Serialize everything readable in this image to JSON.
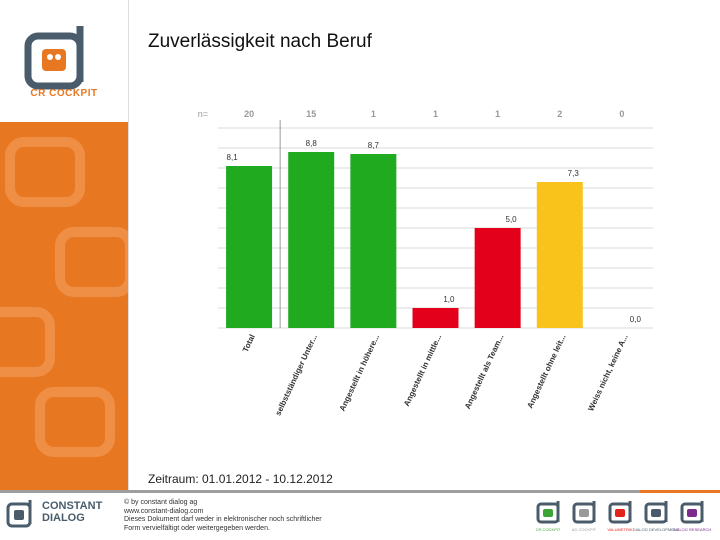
{
  "slide": {
    "title": "Zuverlässigkeit nach Beruf",
    "period": "Zeitraum: 01.01.2012 - 10.12.2012"
  },
  "brand": {
    "logo_text": "CR COCKPIT",
    "footer_brand_line1": "CONSTANT",
    "footer_brand_line2": "DIALOG",
    "copyright_lines": [
      "© by constant dialog ag",
      "www.constant-dialog.com",
      "Dieses Dokument darf weder in elektronischer noch schriftlicher",
      "Form vervielfältigt oder weitergegeben werden."
    ],
    "colors": {
      "orange": "#e87722",
      "slate": "#4a5c6b"
    }
  },
  "footer_icons": [
    {
      "color": "#3aa535",
      "label": "CR COCKPIT"
    },
    {
      "color": "#9a9a9a",
      "label": "AD COCKPIT"
    },
    {
      "color": "#e2231a",
      "label": "VALUMETRIK"
    },
    {
      "color": "#4a5c6b",
      "label": "DIALOG DEVELOPMENT"
    },
    {
      "color": "#7a2b8c",
      "label": "DIALOG RESEARCH"
    }
  ],
  "chart_data": {
    "type": "bar",
    "title": "Zuverlässigkeit nach Beruf",
    "n_label": "n=",
    "categories": [
      "Total",
      "selbstständiger Unter...",
      "Angestellt in höhere...",
      "Angestellt in mittle...",
      "Angestellt als Team...",
      "Angestellt ohne leit...",
      "Weiss nicht, keine A..."
    ],
    "values": [
      8.1,
      8.8,
      8.7,
      1.0,
      5.0,
      7.3,
      0.0
    ],
    "value_labels": [
      "8,1",
      "8,8",
      "8,7",
      "1,0",
      "5,0",
      "7,3",
      "0,0"
    ],
    "n": [
      "20",
      "15",
      "1",
      "1",
      "1",
      "2",
      "0"
    ],
    "colors": [
      "#1faa1f",
      "#1faa1f",
      "#1faa1f",
      "#e3001b",
      "#e3001b",
      "#f9c31c",
      "#cccccc"
    ],
    "ylim": [
      0,
      10
    ],
    "grid": true,
    "xlabel": "",
    "ylabel": ""
  }
}
